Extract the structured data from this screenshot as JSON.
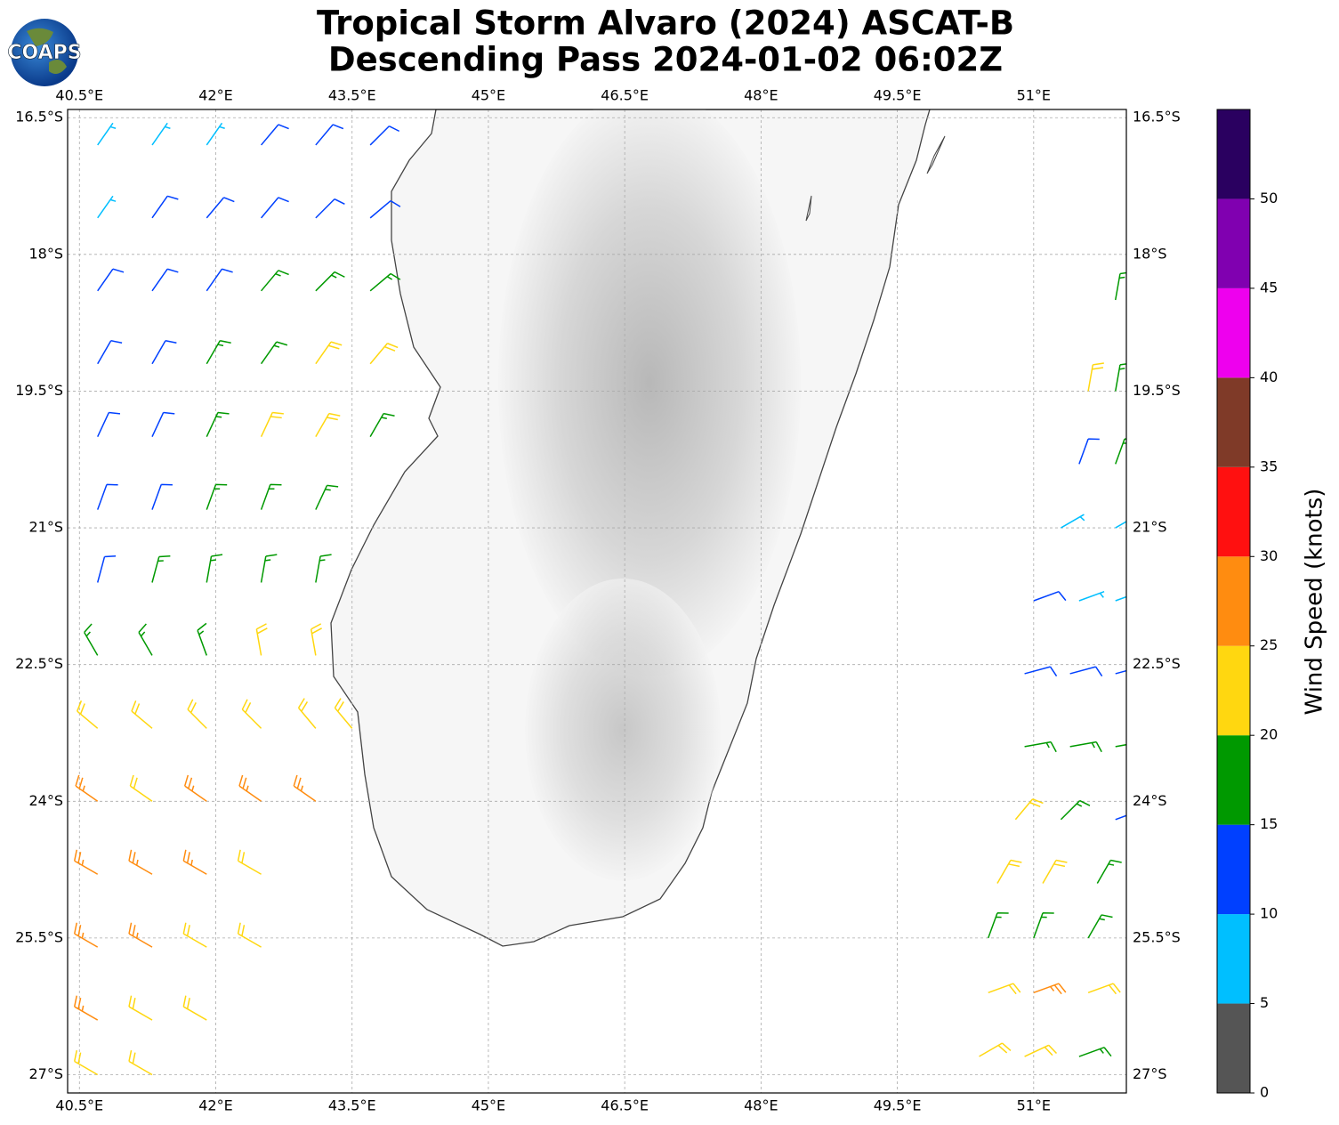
{
  "logo": {
    "text": "COAPS"
  },
  "map": {
    "title": [
      "Tropical Storm Alvaro (2024) ASCAT-B",
      "Descending Pass 2024-01-02 06:02Z"
    ],
    "xlim": [
      40.37,
      52.02
    ],
    "ylim": [
      -27.2,
      -16.41
    ],
    "xticks": [
      {
        "value": 40.5,
        "label": "40.5°E"
      },
      {
        "value": 42,
        "label": "42°E"
      },
      {
        "value": 43.5,
        "label": "43.5°E"
      },
      {
        "value": 45,
        "label": "45°E"
      },
      {
        "value": 46.5,
        "label": "46.5°E"
      },
      {
        "value": 48,
        "label": "48°E"
      },
      {
        "value": 49.5,
        "label": "49.5°E"
      },
      {
        "value": 51,
        "label": "51°E"
      }
    ],
    "yticks": [
      {
        "value": -16.5,
        "label": "16.5°S"
      },
      {
        "value": -18,
        "label": "18°S"
      },
      {
        "value": -19.5,
        "label": "19.5°S"
      },
      {
        "value": -21,
        "label": "21°S"
      },
      {
        "value": -22.5,
        "label": "22.5°S"
      },
      {
        "value": -24,
        "label": "24°S"
      },
      {
        "value": -25.5,
        "label": "25.5°S"
      },
      {
        "value": -27,
        "label": "27°S"
      }
    ],
    "grid": true,
    "barbs": [
      [
        40.7,
        -16.8,
        8,
        35
      ],
      [
        41.3,
        -16.8,
        8,
        35
      ],
      [
        41.9,
        -16.8,
        8,
        35
      ],
      [
        42.5,
        -16.8,
        12,
        40
      ],
      [
        43.1,
        -16.8,
        12,
        40
      ],
      [
        43.7,
        -16.8,
        12,
        45
      ],
      [
        40.7,
        -17.6,
        9,
        35
      ],
      [
        41.3,
        -17.6,
        12,
        35
      ],
      [
        41.9,
        -17.6,
        12,
        40
      ],
      [
        42.5,
        -17.6,
        12,
        40
      ],
      [
        43.1,
        -17.6,
        13,
        45
      ],
      [
        43.7,
        -17.6,
        13,
        50
      ],
      [
        40.7,
        -18.4,
        12,
        35
      ],
      [
        41.3,
        -18.4,
        12,
        35
      ],
      [
        41.9,
        -18.4,
        13,
        35
      ],
      [
        42.5,
        -18.4,
        17,
        40
      ],
      [
        43.1,
        -18.4,
        17,
        45
      ],
      [
        43.7,
        -18.4,
        17,
        50
      ],
      [
        40.7,
        -19.2,
        12,
        30
      ],
      [
        41.3,
        -19.2,
        13,
        30
      ],
      [
        41.9,
        -19.2,
        17,
        30
      ],
      [
        42.5,
        -19.2,
        17,
        35
      ],
      [
        43.1,
        -19.2,
        22,
        35
      ],
      [
        43.7,
        -19.2,
        22,
        40
      ],
      [
        40.7,
        -20.0,
        12,
        25
      ],
      [
        41.3,
        -20.0,
        13,
        25
      ],
      [
        41.9,
        -20.0,
        17,
        25
      ],
      [
        42.5,
        -20.0,
        22,
        25
      ],
      [
        43.1,
        -20.0,
        22,
        30
      ],
      [
        43.7,
        -20.0,
        17,
        30
      ],
      [
        40.7,
        -20.8,
        12,
        20
      ],
      [
        41.3,
        -20.8,
        13,
        20
      ],
      [
        41.9,
        -20.8,
        17,
        20
      ],
      [
        42.5,
        -20.8,
        18,
        20
      ],
      [
        43.1,
        -20.8,
        18,
        25
      ],
      [
        40.7,
        -21.6,
        12,
        15
      ],
      [
        41.3,
        -21.6,
        17,
        15
      ],
      [
        41.9,
        -21.6,
        17,
        10
      ],
      [
        42.5,
        -21.6,
        18,
        10
      ],
      [
        43.1,
        -21.6,
        17,
        10
      ],
      [
        40.7,
        -22.4,
        17,
        330
      ],
      [
        41.3,
        -22.4,
        17,
        330
      ],
      [
        41.9,
        -22.4,
        18,
        340
      ],
      [
        42.5,
        -22.4,
        22,
        350
      ],
      [
        43.1,
        -22.4,
        22,
        350
      ],
      [
        40.7,
        -23.2,
        22,
        310
      ],
      [
        41.3,
        -23.2,
        22,
        310
      ],
      [
        41.9,
        -23.2,
        22,
        315
      ],
      [
        42.5,
        -23.2,
        22,
        315
      ],
      [
        43.1,
        -23.2,
        22,
        320
      ],
      [
        43.5,
        -23.2,
        22,
        320
      ],
      [
        40.7,
        -24.0,
        27,
        305
      ],
      [
        41.3,
        -24.0,
        22,
        305
      ],
      [
        41.9,
        -24.0,
        27,
        305
      ],
      [
        42.5,
        -24.0,
        27,
        305
      ],
      [
        43.1,
        -24.0,
        27,
        305
      ],
      [
        40.7,
        -24.8,
        27,
        300
      ],
      [
        41.3,
        -24.8,
        27,
        300
      ],
      [
        41.9,
        -24.8,
        27,
        300
      ],
      [
        42.5,
        -24.8,
        22,
        300
      ],
      [
        40.7,
        -25.6,
        27,
        300
      ],
      [
        41.3,
        -25.6,
        27,
        300
      ],
      [
        41.9,
        -25.6,
        22,
        300
      ],
      [
        42.5,
        -25.6,
        22,
        300
      ],
      [
        40.7,
        -26.4,
        27,
        300
      ],
      [
        41.3,
        -26.4,
        22,
        300
      ],
      [
        41.9,
        -26.4,
        22,
        300
      ],
      [
        40.7,
        -27.0,
        22,
        300
      ],
      [
        41.3,
        -27.0,
        22,
        300
      ],
      [
        51.9,
        -18.5,
        17,
        10
      ],
      [
        51.6,
        -19.5,
        22,
        10
      ],
      [
        51.9,
        -19.5,
        17,
        10
      ],
      [
        51.5,
        -20.3,
        12,
        20
      ],
      [
        51.9,
        -20.3,
        17,
        20
      ],
      [
        51.3,
        -21.0,
        8,
        60
      ],
      [
        51.9,
        -21.0,
        8,
        60
      ],
      [
        51.0,
        -21.8,
        12,
        70
      ],
      [
        51.5,
        -21.8,
        8,
        70
      ],
      [
        51.9,
        -21.8,
        8,
        70
      ],
      [
        50.9,
        -22.6,
        12,
        75
      ],
      [
        51.4,
        -22.6,
        12,
        75
      ],
      [
        51.9,
        -22.6,
        12,
        75
      ],
      [
        50.9,
        -23.4,
        17,
        80
      ],
      [
        51.4,
        -23.4,
        17,
        80
      ],
      [
        51.9,
        -23.4,
        17,
        80
      ],
      [
        50.8,
        -24.2,
        22,
        40
      ],
      [
        51.3,
        -24.2,
        17,
        45
      ],
      [
        51.9,
        -24.2,
        12,
        70
      ],
      [
        50.6,
        -24.9,
        22,
        30
      ],
      [
        51.1,
        -24.9,
        22,
        30
      ],
      [
        51.7,
        -24.9,
        17,
        30
      ],
      [
        50.5,
        -25.5,
        17,
        20
      ],
      [
        51.0,
        -25.5,
        17,
        20
      ],
      [
        51.6,
        -25.5,
        17,
        30
      ],
      [
        50.5,
        -26.1,
        22,
        70
      ],
      [
        51.0,
        -26.1,
        27,
        70
      ],
      [
        51.6,
        -26.1,
        22,
        70
      ],
      [
        50.4,
        -26.8,
        22,
        60
      ],
      [
        50.9,
        -26.8,
        22,
        65
      ],
      [
        51.5,
        -26.8,
        17,
        70
      ]
    ]
  },
  "colorbar": {
    "label": "Wind Speed (knots)",
    "bounds": [
      0,
      5,
      10,
      15,
      20,
      25,
      30,
      35,
      40,
      45,
      50,
      55
    ],
    "colors": [
      "#555555",
      "#00bfff",
      "#0040ff",
      "#009900",
      "#ffd710",
      "#ff8c10",
      "#ff1010",
      "#7f3a28",
      "#ee00ee",
      "#8000b0",
      "#2a0060"
    ],
    "ticks": [
      0,
      5,
      10,
      15,
      20,
      25,
      30,
      35,
      40,
      45,
      50
    ]
  }
}
